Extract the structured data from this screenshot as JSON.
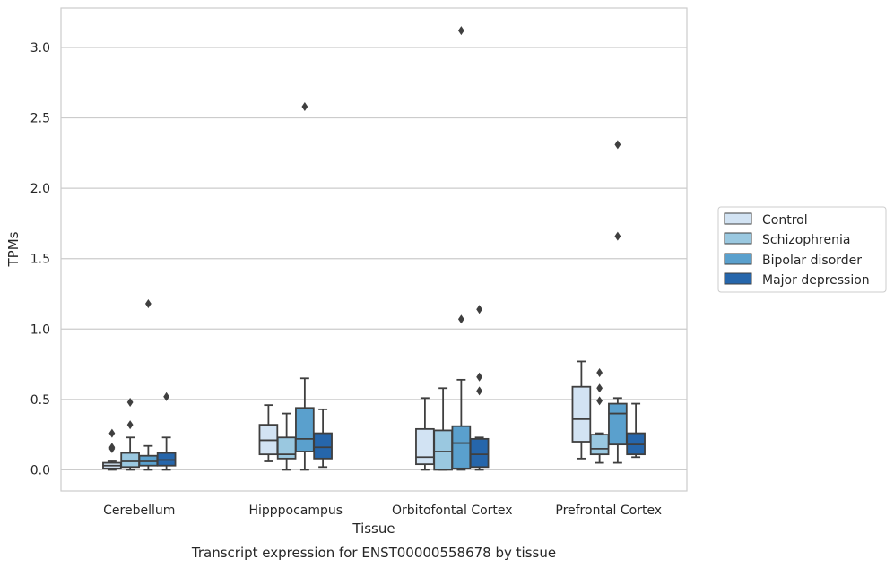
{
  "chart_data": {
    "type": "box",
    "title": "",
    "caption": "Transcript expression for ENST00000558678 by tissue",
    "xlabel": "Tissue",
    "ylabel": "TPMs",
    "ylim": [
      -0.15,
      3.28
    ],
    "yticks": [
      "0.0",
      "0.5",
      "1.0",
      "1.5",
      "2.0",
      "2.5",
      "3.0"
    ],
    "grid": "horizontal",
    "legend_position": "right",
    "categories": [
      "Cerebellum",
      "Hipppocampus",
      "Orbitofontal Cortex",
      "Prefrontal Cortex"
    ],
    "series": [
      {
        "name": "Control",
        "color": "#d2e3f3",
        "boxes": [
          {
            "whisker_low": 0.0,
            "q1": 0.01,
            "median": 0.03,
            "q3": 0.05,
            "whisker_high": 0.06,
            "outliers": [
              0.26,
              0.16,
              0.15
            ]
          },
          {
            "whisker_low": 0.06,
            "q1": 0.11,
            "median": 0.21,
            "q3": 0.32,
            "whisker_high": 0.46,
            "outliers": []
          },
          {
            "whisker_low": 0.0,
            "q1": 0.04,
            "median": 0.09,
            "q3": 0.29,
            "whisker_high": 0.51,
            "outliers": []
          },
          {
            "whisker_low": 0.08,
            "q1": 0.2,
            "median": 0.36,
            "q3": 0.59,
            "whisker_high": 0.77,
            "outliers": []
          }
        ]
      },
      {
        "name": "Schizophrenia",
        "color": "#9ac8e0",
        "boxes": [
          {
            "whisker_low": 0.0,
            "q1": 0.02,
            "median": 0.06,
            "q3": 0.12,
            "whisker_high": 0.23,
            "outliers": [
              0.48,
              0.32
            ]
          },
          {
            "whisker_low": 0.0,
            "q1": 0.08,
            "median": 0.11,
            "q3": 0.23,
            "whisker_high": 0.4,
            "outliers": []
          },
          {
            "whisker_low": 0.0,
            "q1": 0.0,
            "median": 0.13,
            "q3": 0.28,
            "whisker_high": 0.58,
            "outliers": []
          },
          {
            "whisker_low": 0.05,
            "q1": 0.11,
            "median": 0.15,
            "q3": 0.25,
            "whisker_high": 0.26,
            "outliers": [
              0.69,
              0.58,
              0.49
            ]
          }
        ]
      },
      {
        "name": "Bipolar disorder",
        "color": "#5aa0cd",
        "boxes": [
          {
            "whisker_low": 0.0,
            "q1": 0.03,
            "median": 0.06,
            "q3": 0.1,
            "whisker_high": 0.17,
            "outliers": [
              1.18
            ]
          },
          {
            "whisker_low": 0.0,
            "q1": 0.13,
            "median": 0.22,
            "q3": 0.44,
            "whisker_high": 0.65,
            "outliers": [
              2.58
            ]
          },
          {
            "whisker_low": 0.0,
            "q1": 0.01,
            "median": 0.19,
            "q3": 0.31,
            "whisker_high": 0.64,
            "outliers": [
              3.12,
              1.07
            ]
          },
          {
            "whisker_low": 0.05,
            "q1": 0.18,
            "median": 0.4,
            "q3": 0.47,
            "whisker_high": 0.51,
            "outliers": [
              2.31,
              1.66
            ]
          }
        ]
      },
      {
        "name": "Major depression",
        "color": "#2666ab",
        "boxes": [
          {
            "whisker_low": 0.0,
            "q1": 0.03,
            "median": 0.07,
            "q3": 0.12,
            "whisker_high": 0.23,
            "outliers": [
              0.52
            ]
          },
          {
            "whisker_low": 0.02,
            "q1": 0.08,
            "median": 0.16,
            "q3": 0.26,
            "whisker_high": 0.43,
            "outliers": []
          },
          {
            "whisker_low": 0.0,
            "q1": 0.02,
            "median": 0.11,
            "q3": 0.22,
            "whisker_high": 0.23,
            "outliers": [
              1.14,
              0.66,
              0.56
            ]
          },
          {
            "whisker_low": 0.09,
            "q1": 0.11,
            "median": 0.18,
            "q3": 0.26,
            "whisker_high": 0.47,
            "outliers": []
          }
        ]
      }
    ]
  },
  "colors": {
    "grid": "#cccccc",
    "frame": "#cccccc",
    "box_edge": "#3f3f3f"
  }
}
